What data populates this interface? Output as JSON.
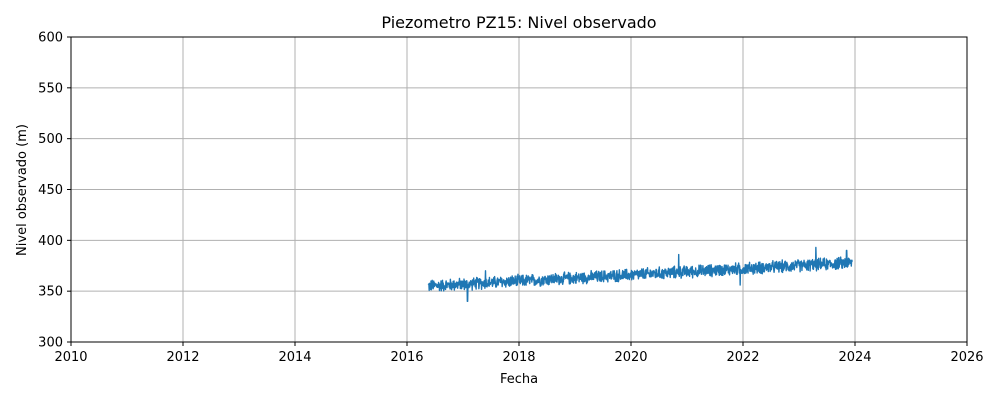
{
  "chart_data": {
    "type": "line",
    "title": "Piezometro PZ15: Nivel observado",
    "xlabel": "Fecha",
    "ylabel": "Nivel observado (m)",
    "xlim": [
      2010,
      2026
    ],
    "ylim": [
      300,
      600
    ],
    "x_ticks": [
      "2010",
      "2012",
      "2014",
      "2016",
      "2018",
      "2020",
      "2022",
      "2024",
      "2026"
    ],
    "y_ticks": [
      "300",
      "350",
      "400",
      "450",
      "500",
      "550",
      "600"
    ],
    "grid": true,
    "series": [
      {
        "color": "#1f77b4",
        "x_start": 2016.38,
        "x_end": 2023.95,
        "trend_start": 355,
        "trend_end": 378,
        "noise_amplitude": 5,
        "spikes": [
          {
            "x": 2017.08,
            "y": 340
          },
          {
            "x": 2017.4,
            "y": 370
          },
          {
            "x": 2020.85,
            "y": 386
          },
          {
            "x": 2021.95,
            "y": 356
          },
          {
            "x": 2023.3,
            "y": 393
          },
          {
            "x": 2023.85,
            "y": 390
          }
        ]
      }
    ]
  }
}
